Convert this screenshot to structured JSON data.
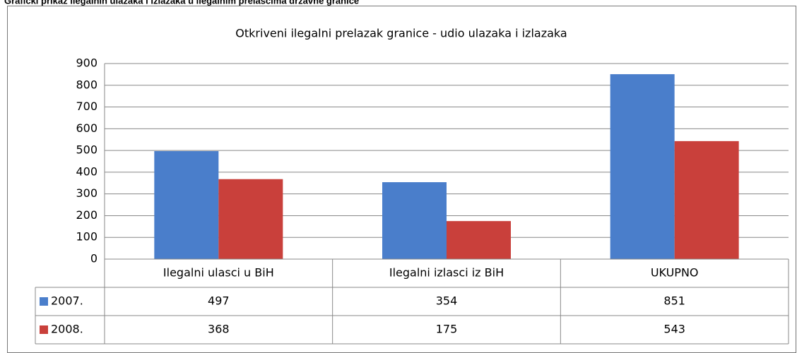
{
  "caption": "Grafički prikaz ilegalnih ulazaka i izlazaka u ilegalnim prelascima državne granice",
  "chart_data": {
    "type": "bar",
    "title": "Otkriveni ilegalni prelazak granice - udio ulazaka i izlazaka",
    "categories": [
      "Ilegalni ulasci u BiH",
      "Ilegalni izlasci iz BiH",
      "UKUPNO"
    ],
    "series": [
      {
        "name": "2007.",
        "color": "#4a7ecb",
        "values": [
          497,
          354,
          851
        ]
      },
      {
        "name": "2008.",
        "color": "#c9403b",
        "values": [
          368,
          175,
          543
        ]
      }
    ],
    "ylim": [
      0,
      900
    ],
    "yticks": [
      0,
      100,
      200,
      300,
      400,
      500,
      600,
      700,
      800,
      900
    ],
    "grid": true,
    "legend": "table"
  }
}
